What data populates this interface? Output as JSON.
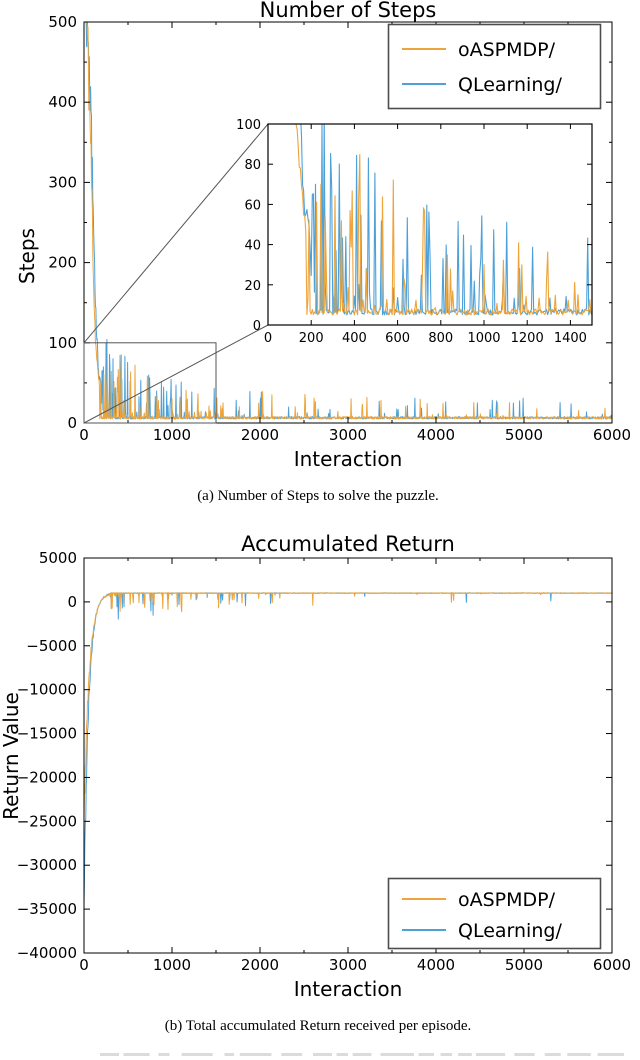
{
  "page": {
    "background": "#ffffff"
  },
  "colors": {
    "oaspmdp": "#eda43b",
    "qlearning": "#4da1d8",
    "axis": "#000000",
    "legend_border": "#4d4d4d",
    "connector": "#555555"
  },
  "figure": {
    "caption_a": "(a) Number of Steps to solve the puzzle.",
    "caption_b": "(b) Total accumulated Return received per episode."
  },
  "chart_data": [
    {
      "type": "line",
      "title": "Number of Steps",
      "xlabel": "Interaction",
      "ylabel": "Steps",
      "xlim": [
        0,
        6000
      ],
      "ylim": [
        0,
        500
      ],
      "xticks": [
        0,
        1000,
        2000,
        3000,
        4000,
        5000,
        6000
      ],
      "yticks": [
        0,
        100,
        200,
        300,
        400,
        500
      ],
      "x_minor_step": 500,
      "y_minor_step": 50,
      "grid": false,
      "legend_position": "upper right",
      "series": [
        {
          "name": "oASPMDP/",
          "color": "#eda43b",
          "baseline_steps": 6,
          "envelope_points": [
            [
              0,
              500
            ],
            [
              30,
              500
            ],
            [
              55,
              430
            ],
            [
              80,
              330
            ],
            [
              100,
              230
            ],
            [
              115,
              150
            ],
            [
              135,
              95
            ],
            [
              155,
              65
            ],
            [
              180,
              45
            ],
            [
              400,
              60
            ],
            [
              700,
              40
            ],
            [
              1000,
              30
            ],
            [
              1500,
              40
            ],
            [
              2300,
              40
            ],
            [
              3000,
              25
            ],
            [
              4500,
              45
            ],
            [
              6000,
              25
            ]
          ],
          "gen": {
            "seed": 11,
            "p1end": 180,
            "kps": [
              [
                0,
                500
              ],
              [
                30,
                500
              ],
              [
                55,
                430
              ],
              [
                80,
                330
              ],
              [
                100,
                230
              ],
              [
                115,
                150
              ],
              [
                135,
                95
              ],
              [
                155,
                65
              ],
              [
                180,
                45
              ]
            ]
          }
        },
        {
          "name": "QLearning/",
          "color": "#4da1d8",
          "baseline_steps": 6,
          "envelope_points": [
            [
              0,
              500
            ],
            [
              40,
              500
            ],
            [
              65,
              440
            ],
            [
              85,
              350
            ],
            [
              105,
              255
            ],
            [
              125,
              170
            ],
            [
              145,
              105
            ],
            [
              170,
              60
            ],
            [
              310,
              72
            ],
            [
              480,
              52
            ],
            [
              730,
              40
            ],
            [
              1070,
              39
            ],
            [
              1500,
              25
            ],
            [
              2500,
              35
            ],
            [
              4000,
              20
            ],
            [
              6000,
              25
            ]
          ],
          "gen": {
            "seed": 97,
            "p1end": 200,
            "kps": [
              [
                0,
                500
              ],
              [
                40,
                500
              ],
              [
                65,
                440
              ],
              [
                85,
                350
              ],
              [
                105,
                255
              ],
              [
                125,
                170
              ],
              [
                145,
                105
              ],
              [
                170,
                60
              ],
              [
                200,
                38
              ]
            ]
          }
        }
      ],
      "inset": {
        "xlim": [
          0,
          1500
        ],
        "ylim": [
          0,
          100
        ],
        "xticks": [
          0,
          200,
          400,
          600,
          800,
          1000,
          1200,
          1400
        ],
        "yticks": [
          0,
          20,
          40,
          60,
          80,
          100
        ],
        "zoom_rect_x": [
          0,
          1500
        ],
        "zoom_rect_y": [
          0,
          100
        ]
      }
    },
    {
      "type": "line",
      "title": "Accumulated Return",
      "xlabel": "Interaction",
      "ylabel": "Return Value",
      "xlim": [
        0,
        6000
      ],
      "ylim": [
        -40000,
        5000
      ],
      "xticks": [
        0,
        1000,
        2000,
        3000,
        4000,
        5000,
        6000
      ],
      "yticks": [
        5000,
        0,
        -5000,
        -10000,
        -15000,
        -20000,
        -25000,
        -30000,
        -35000,
        -40000
      ],
      "x_minor_step": 500,
      "grid": false,
      "legend_position": "lower right",
      "plateau_return": 1000,
      "series": [
        {
          "name": "oASPMDP/",
          "color": "#eda43b",
          "start_value": -25000,
          "envelope_points": [
            [
              0,
              -25000
            ],
            [
              30,
              -20000
            ],
            [
              60,
              -15500
            ],
            [
              90,
              -9500
            ],
            [
              130,
              -4500
            ],
            [
              180,
              -800
            ],
            [
              250,
              900
            ],
            [
              600,
              1000
            ],
            [
              1000,
              1000
            ],
            [
              3000,
              1000
            ],
            [
              6000,
              1000
            ]
          ],
          "gen": {
            "seed": 5,
            "D": 26000,
            "tau": 58
          }
        },
        {
          "name": "QLearning/",
          "color": "#4da1d8",
          "start_value": -35000,
          "envelope_points": [
            [
              0,
              -35000
            ],
            [
              25,
              -29000
            ],
            [
              55,
              -21000
            ],
            [
              85,
              -13500
            ],
            [
              120,
              -6800
            ],
            [
              165,
              -2200
            ],
            [
              230,
              600
            ],
            [
              600,
              1000
            ],
            [
              1000,
              1000
            ],
            [
              3000,
              1000
            ],
            [
              6000,
              1000
            ]
          ],
          "gen": {
            "seed": 42,
            "D": 36000,
            "tau": 52
          }
        }
      ]
    }
  ]
}
